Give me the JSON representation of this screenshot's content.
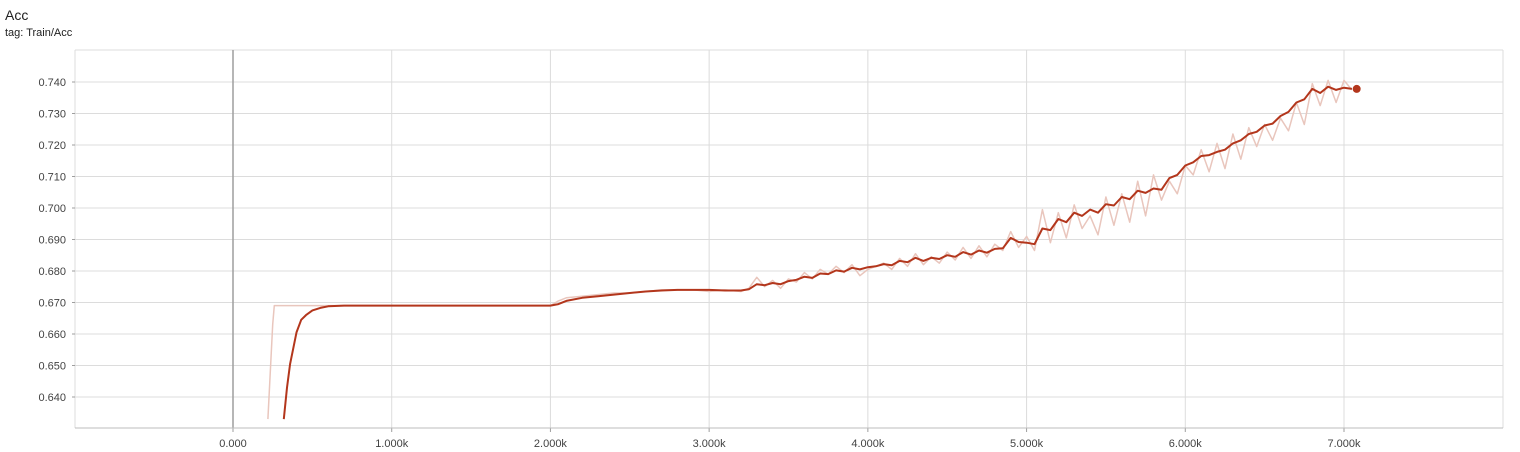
{
  "chart_data": {
    "type": "line",
    "title": "Acc",
    "subtitle": "tag: Train/Acc",
    "xlim": [
      -1000,
      8000
    ],
    "ylim": [
      0.633,
      0.75
    ],
    "x_ticks": [
      0,
      1000,
      2000,
      3000,
      4000,
      5000,
      6000,
      7000
    ],
    "x_tick_labels": [
      "0.000",
      "1.000k",
      "2.000k",
      "3.000k",
      "4.000k",
      "5.000k",
      "6.000k",
      "7.000k"
    ],
    "y_ticks": [
      0.64,
      0.65,
      0.66,
      0.67,
      0.68,
      0.69,
      0.7,
      0.71,
      0.72,
      0.73,
      0.74
    ],
    "y_tick_labels": [
      "0.640",
      "0.650",
      "0.660",
      "0.670",
      "0.680",
      "0.690",
      "0.700",
      "0.710",
      "0.720",
      "0.730",
      "0.740"
    ],
    "grid": true,
    "colors": {
      "smoothed": "#b3361c",
      "raw": "#e9c6bd",
      "grid": "#dcdcdc",
      "zero_line": "#9e9e9e"
    },
    "series": [
      {
        "style": "raw",
        "x": [
          220,
          250,
          260,
          300,
          500,
          1000,
          2000,
          2050,
          2100,
          2200,
          2300,
          2400,
          2500,
          2600,
          2700,
          2800,
          2900,
          3000,
          3100,
          3200,
          3250,
          3300,
          3350,
          3400,
          3450,
          3500,
          3550,
          3600,
          3650,
          3700,
          3750,
          3800,
          3850,
          3900,
          3950,
          4000,
          4050,
          4100,
          4150,
          4200,
          4250,
          4300,
          4350,
          4400,
          4450,
          4500,
          4550,
          4600,
          4650,
          4700,
          4750,
          4800,
          4850,
          4900,
          4950,
          5000,
          5050,
          5100,
          5150,
          5200,
          5250,
          5300,
          5350,
          5400,
          5450,
          5500,
          5550,
          5600,
          5650,
          5700,
          5750,
          5800,
          5850,
          5900,
          5950,
          6000,
          6050,
          6100,
          6150,
          6200,
          6250,
          6300,
          6350,
          6400,
          6450,
          6500,
          6550,
          6600,
          6650,
          6700,
          6750,
          6800,
          6850,
          6900,
          6950,
          7000,
          7050
        ],
        "y": [
          0.633,
          0.663,
          0.669,
          0.669,
          0.669,
          0.669,
          0.669,
          0.6705,
          0.6715,
          0.672,
          0.6725,
          0.673,
          0.673,
          0.6735,
          0.674,
          0.674,
          0.674,
          0.6735,
          0.674,
          0.6735,
          0.6745,
          0.678,
          0.675,
          0.677,
          0.6745,
          0.6775,
          0.6765,
          0.6795,
          0.6775,
          0.6805,
          0.679,
          0.6815,
          0.6795,
          0.682,
          0.6785,
          0.6805,
          0.6815,
          0.6825,
          0.6805,
          0.684,
          0.6815,
          0.6855,
          0.682,
          0.6845,
          0.6825,
          0.686,
          0.6835,
          0.6875,
          0.684,
          0.688,
          0.6845,
          0.6885,
          0.6865,
          0.6925,
          0.6875,
          0.691,
          0.6865,
          0.6995,
          0.689,
          0.6985,
          0.6905,
          0.701,
          0.6935,
          0.6975,
          0.6915,
          0.7035,
          0.6945,
          0.7045,
          0.6955,
          0.7085,
          0.6975,
          0.7105,
          0.7025,
          0.7085,
          0.7045,
          0.7135,
          0.7105,
          0.7185,
          0.7115,
          0.7205,
          0.7125,
          0.7235,
          0.7155,
          0.7255,
          0.7195,
          0.7265,
          0.7215,
          0.7285,
          0.7245,
          0.7335,
          0.7265,
          0.7395,
          0.7325,
          0.7405,
          0.7335,
          0.7405,
          0.7375
        ]
      },
      {
        "style": "smoothed",
        "x": [
          320,
          340,
          360,
          380,
          400,
          430,
          460,
          500,
          550,
          600,
          700,
          800,
          1000,
          1500,
          2000,
          2050,
          2100,
          2200,
          2300,
          2400,
          2500,
          2600,
          2700,
          2800,
          2900,
          3000,
          3100,
          3200,
          3250,
          3300,
          3350,
          3400,
          3450,
          3500,
          3550,
          3600,
          3650,
          3700,
          3750,
          3800,
          3850,
          3900,
          3950,
          4000,
          4050,
          4100,
          4150,
          4200,
          4250,
          4300,
          4350,
          4400,
          4450,
          4500,
          4550,
          4600,
          4650,
          4700,
          4750,
          4800,
          4850,
          4900,
          4950,
          5000,
          5050,
          5100,
          5150,
          5200,
          5250,
          5300,
          5350,
          5400,
          5450,
          5500,
          5550,
          5600,
          5650,
          5700,
          5750,
          5800,
          5850,
          5900,
          5950,
          6000,
          6050,
          6100,
          6150,
          6200,
          6250,
          6300,
          6350,
          6400,
          6450,
          6500,
          6550,
          6600,
          6650,
          6700,
          6750,
          6800,
          6850,
          6900,
          6950,
          7000,
          7050
        ],
        "y": [
          0.633,
          0.643,
          0.6505,
          0.6555,
          0.6605,
          0.6645,
          0.666,
          0.6675,
          0.6683,
          0.6688,
          0.669,
          0.669,
          0.669,
          0.669,
          0.669,
          0.6695,
          0.6705,
          0.6715,
          0.672,
          0.6725,
          0.673,
          0.6735,
          0.6738,
          0.674,
          0.674,
          0.674,
          0.6738,
          0.6738,
          0.6742,
          0.6758,
          0.6755,
          0.6762,
          0.6758,
          0.6768,
          0.6772,
          0.6782,
          0.6778,
          0.6792,
          0.679,
          0.6802,
          0.6798,
          0.681,
          0.6805,
          0.6812,
          0.6815,
          0.6822,
          0.6818,
          0.6832,
          0.6828,
          0.6842,
          0.6832,
          0.6842,
          0.6838,
          0.685,
          0.6845,
          0.686,
          0.6852,
          0.6865,
          0.6858,
          0.687,
          0.6872,
          0.6905,
          0.6892,
          0.689,
          0.6885,
          0.6935,
          0.693,
          0.6965,
          0.6955,
          0.6985,
          0.6975,
          0.6995,
          0.6985,
          0.7012,
          0.7008,
          0.7035,
          0.7028,
          0.7055,
          0.7048,
          0.7062,
          0.7058,
          0.7095,
          0.7105,
          0.7135,
          0.7145,
          0.7165,
          0.7168,
          0.7178,
          0.7185,
          0.7205,
          0.7215,
          0.7235,
          0.7242,
          0.7262,
          0.7268,
          0.7292,
          0.7305,
          0.7335,
          0.7345,
          0.7378,
          0.7365,
          0.7385,
          0.7375,
          0.7382,
          0.7378
        ]
      }
    ],
    "last_point": {
      "x": 7080,
      "y": 0.7378
    }
  }
}
